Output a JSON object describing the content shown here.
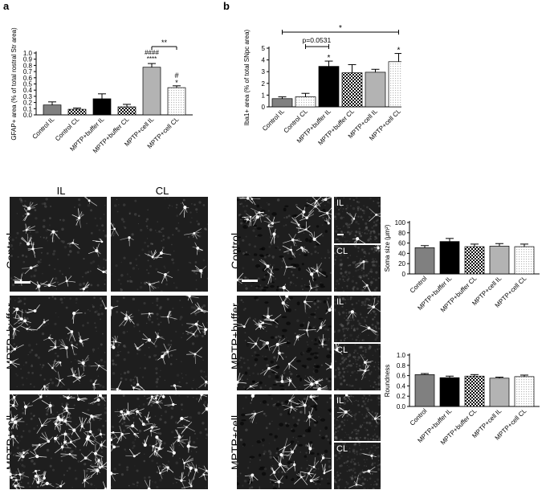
{
  "panel_labels": {
    "a": "a",
    "b": "b"
  },
  "panel_a": {
    "column_headers": [
      "IL",
      "CL"
    ],
    "row_labels": [
      "Control",
      "MPTP+buffer",
      "MPTP+cell"
    ]
  },
  "panel_b": {
    "row_labels": [
      "Control",
      "MPTP+buffer",
      "MPTP+cell"
    ],
    "inset_labels": [
      "IL",
      "CL"
    ]
  },
  "chart_data": [
    {
      "id": "gfap",
      "type": "bar",
      "ylabel": "GFAP+ area (% of total rostral Str area)",
      "ylim": [
        0,
        1.0
      ],
      "yticks": [
        "0.0",
        "0.1",
        "0.2",
        "0.3",
        "0.4",
        "0.5",
        "0.6",
        "0.7",
        "0.8",
        "0.9",
        "1.0"
      ],
      "categories": [
        "Control IL",
        "Control CL",
        "MPTP+buffer IL",
        "MPTP+buffer CL",
        "MPTP+cell IL",
        "MPTP+cell CL"
      ],
      "values": [
        0.16,
        0.09,
        0.26,
        0.13,
        0.77,
        0.44
      ],
      "errors": [
        0.05,
        0.02,
        0.08,
        0.04,
        0.06,
        0.03
      ],
      "annotations": [
        "####",
        "****",
        "#",
        "*",
        "**"
      ]
    },
    {
      "id": "iba1",
      "type": "bar",
      "ylabel": "Iba1+ area (% of total SNpc area)",
      "ylim": [
        0,
        5
      ],
      "yticks": [
        "0",
        "1",
        "2",
        "3",
        "4",
        "5"
      ],
      "categories": [
        "Control IL",
        "Control CL",
        "MPTP+buffer IL",
        "MPTP+buffer CL",
        "MPTP+cell IL",
        "MPTP+cell CL"
      ],
      "values": [
        0.7,
        0.85,
        3.45,
        2.9,
        2.95,
        3.85
      ],
      "errors": [
        0.15,
        0.3,
        0.45,
        0.7,
        0.25,
        0.7
      ],
      "annotations": [
        "p=0.0531",
        "*",
        "*",
        "*"
      ]
    },
    {
      "id": "soma",
      "type": "bar",
      "ylabel": "Soma size (μm²)",
      "ylim": [
        0,
        100
      ],
      "yticks": [
        "0",
        "20",
        "40",
        "60",
        "80",
        "100"
      ],
      "categories": [
        "Control",
        "MPTP+buffer IL",
        "MPTP+buffer CL",
        "MPTP+cell IL",
        "MPTP+cell CL"
      ],
      "values": [
        51,
        63,
        53,
        54,
        53
      ],
      "errors": [
        4,
        6,
        5,
        5,
        5
      ]
    },
    {
      "id": "round",
      "type": "bar",
      "ylabel": "Roundness",
      "ylim": [
        0,
        1.0
      ],
      "yticks": [
        "0.0",
        "0.2",
        "0.4",
        "0.6",
        "0.8",
        "1.0"
      ],
      "categories": [
        "Control",
        "MPTP+buffer IL",
        "MPTP+buffer CL",
        "MPTP+cell IL",
        "MPTP+cell CL"
      ],
      "values": [
        0.62,
        0.56,
        0.59,
        0.55,
        0.58
      ],
      "errors": [
        0.02,
        0.03,
        0.03,
        0.02,
        0.03
      ]
    }
  ]
}
